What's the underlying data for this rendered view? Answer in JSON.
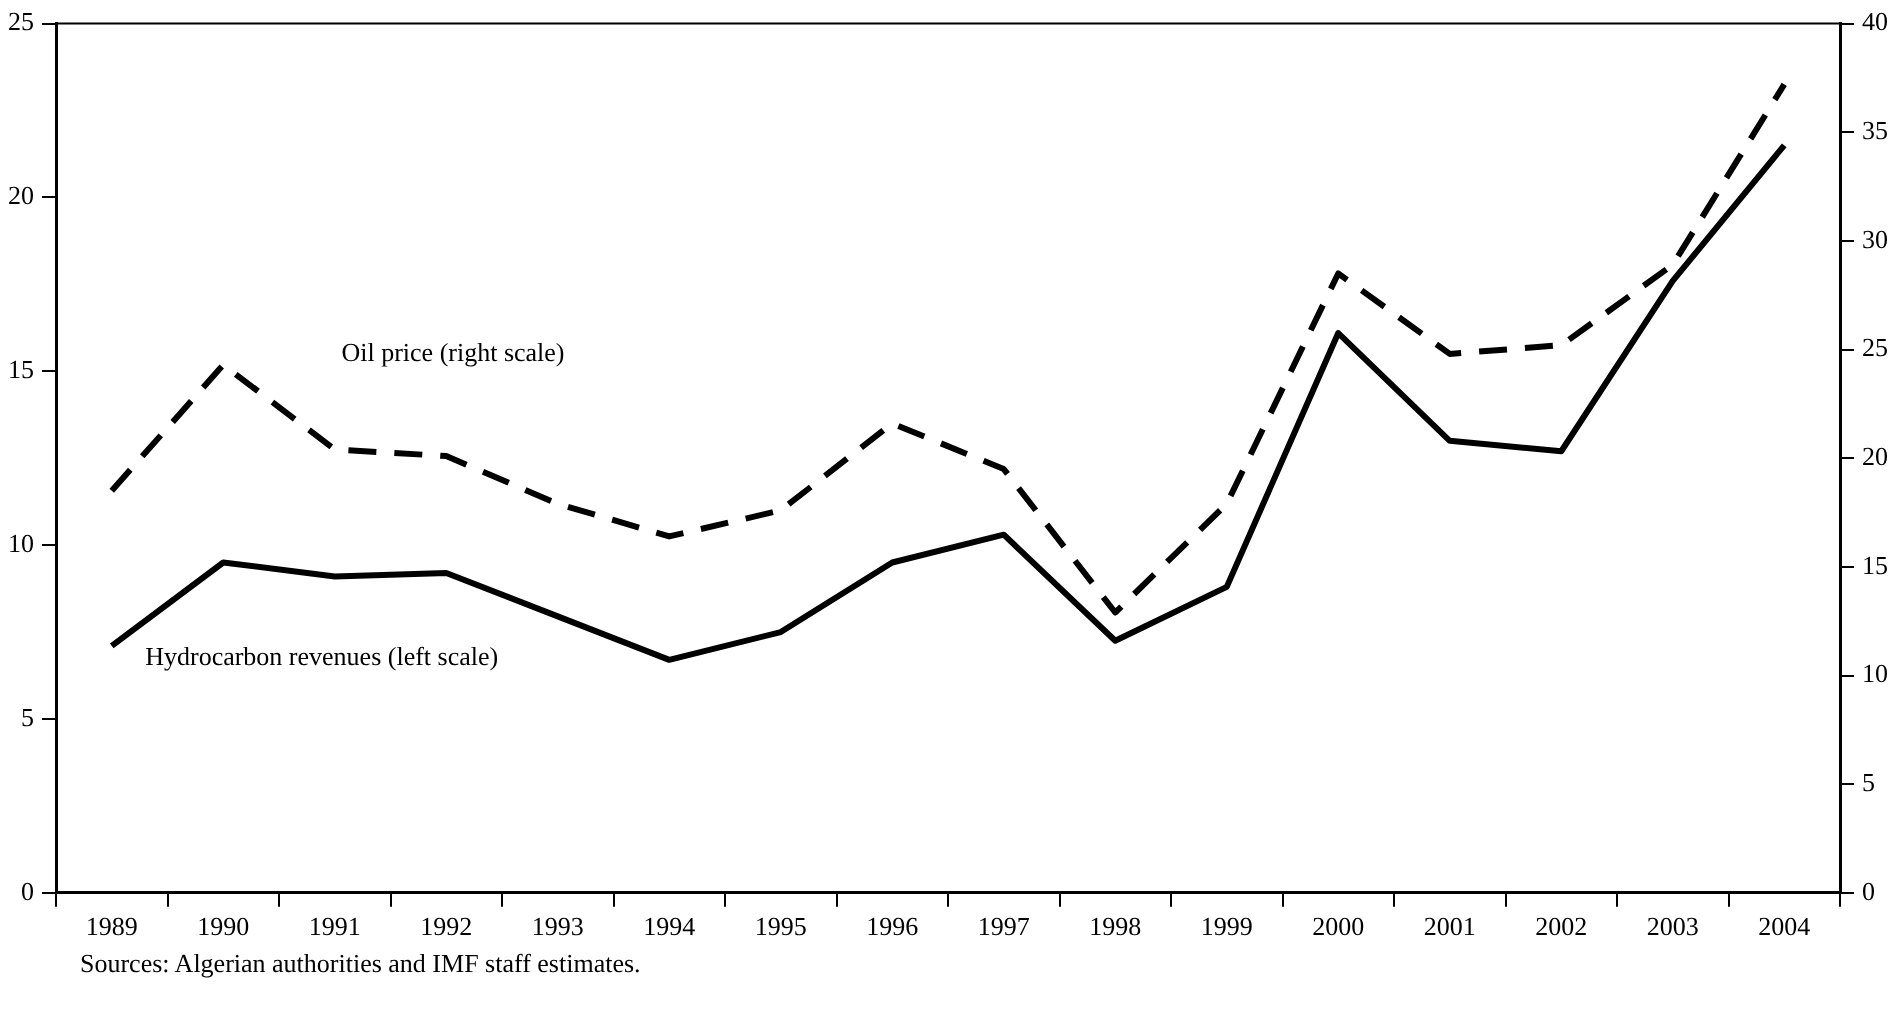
{
  "chart_data": {
    "type": "line",
    "categories": [
      "1989",
      "1990",
      "1991",
      "1992",
      "1993",
      "1994",
      "1995",
      "1996",
      "1997",
      "1998",
      "1999",
      "2000",
      "2001",
      "2002",
      "2003",
      "2004"
    ],
    "series": [
      {
        "name": "Oil price (right scale)",
        "color": "#000000",
        "axis": "y2",
        "line_style": "dashed",
        "values": [
          18.5,
          24.3,
          20.4,
          20.1,
          17.9,
          16.4,
          17.6,
          21.6,
          19.5,
          12.9,
          17.9,
          28.5,
          24.8,
          25.2,
          28.9,
          37.2
        ]
      },
      {
        "name": "Hydrocarbon revenues (left scale)",
        "color": "#000000",
        "line_style": "solid",
        "values": [
          7.1,
          9.5,
          9.1,
          9.2,
          7.95,
          6.7,
          7.5,
          9.5,
          10.3,
          7.25,
          8.8,
          16.1,
          13.0,
          12.7,
          17.6,
          21.5
        ]
      }
    ],
    "ylim": [
      0,
      25
    ],
    "yticks": [
      0,
      5,
      10,
      15,
      20,
      25
    ],
    "y2lim": [
      0,
      40
    ],
    "y2ticks": [
      0,
      5,
      10,
      15,
      20,
      25,
      30,
      35,
      40
    ],
    "grid": false,
    "legend": false,
    "marker": "none",
    "annotations": [
      "Sources: Algerian authorities and IMF staff estimates."
    ]
  }
}
